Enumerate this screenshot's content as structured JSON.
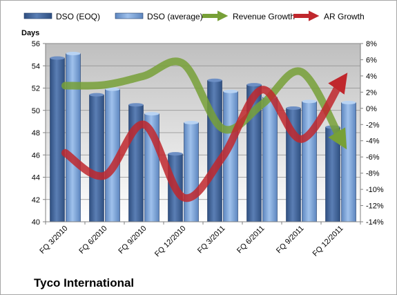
{
  "chart_data": {
    "type": "bar",
    "title": "",
    "company": "Tyco International",
    "ylabel": "Days",
    "categories": [
      "FQ 3/2010",
      "FQ 6/2010",
      "FQ 9/2010",
      "FQ 12/2010",
      "FQ 3/2011",
      "FQ 6/2011",
      "FQ 9/2011",
      "FQ 12/2011"
    ],
    "ylim": [
      40,
      56
    ],
    "yticks": [
      40,
      42,
      44,
      46,
      48,
      50,
      52,
      54,
      56
    ],
    "ylim_right": [
      -14,
      8
    ],
    "yticks_right": [
      -14,
      -12,
      -10,
      -8,
      -6,
      -4,
      -2,
      0,
      2,
      4,
      6,
      8
    ],
    "grid": true,
    "legend_position": "top",
    "series": [
      {
        "name": "DSO (EOQ)",
        "kind": "bar",
        "axis": "left",
        "color": "#4a6fa5",
        "values": [
          54.7,
          51.4,
          50.5,
          46.1,
          52.7,
          52.3,
          50.2,
          48.5
        ]
      },
      {
        "name": "DSO (average)",
        "kind": "bar",
        "axis": "left",
        "color": "#8fb3e0",
        "values": [
          55.1,
          51.9,
          49.7,
          48.9,
          51.7,
          51.2,
          50.8,
          50.7
        ]
      },
      {
        "name": "Revenue Growth",
        "kind": "line",
        "axis": "right",
        "color": "#77a037",
        "values": [
          2.8,
          2.9,
          4.0,
          5.5,
          -2.5,
          0.5,
          4.5,
          -3.8
        ]
      },
      {
        "name": "AR Growth",
        "kind": "line",
        "axis": "right",
        "color": "#c0272d",
        "values": [
          -5.5,
          -8.3,
          -2.0,
          -11.0,
          -6.0,
          2.3,
          -3.8,
          3.2
        ]
      }
    ]
  }
}
